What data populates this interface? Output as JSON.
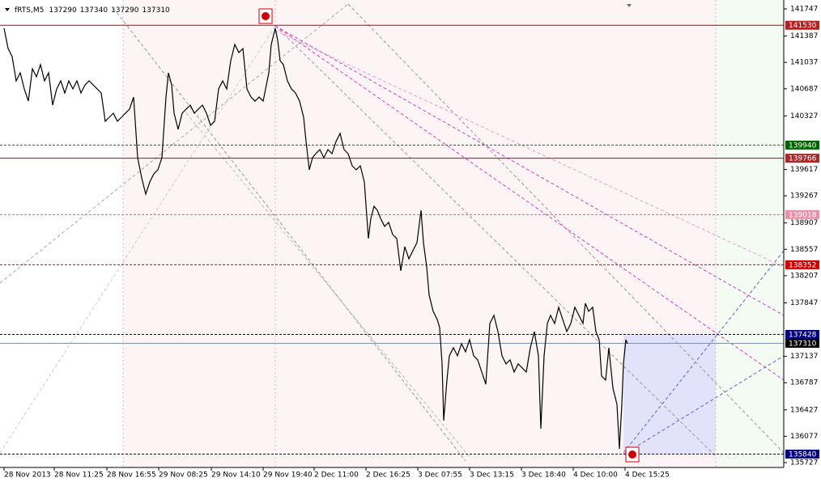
{
  "header": {
    "symbol": "fRTS,M5",
    "ohlc": [
      137290,
      137340,
      137290,
      137310
    ]
  },
  "chart_data": {
    "type": "line",
    "x": [
      5,
      10,
      15,
      20,
      25,
      30,
      35,
      40,
      45,
      50,
      55,
      60,
      65,
      70,
      75,
      80,
      85,
      90,
      95,
      100,
      105,
      110,
      120,
      125,
      130,
      135,
      140,
      145,
      150,
      155,
      160,
      165,
      170,
      175,
      180,
      185,
      190,
      195,
      200,
      205,
      208,
      212,
      215,
      220,
      225,
      230,
      235,
      240,
      245,
      250,
      255,
      260,
      265,
      270,
      275,
      280,
      285,
      290,
      295,
      300,
      305,
      310,
      315,
      320,
      325,
      328,
      332,
      335,
      340,
      343,
      346,
      350,
      355,
      360,
      365,
      370,
      375,
      378,
      382,
      386,
      390,
      395,
      400,
      405,
      410,
      415,
      420,
      425,
      430,
      435,
      440,
      445,
      450,
      455,
      458,
      462,
      466,
      470,
      475,
      480,
      485,
      490,
      495,
      500,
      505,
      510,
      515,
      520,
      523,
      527,
      530,
      535,
      540,
      543,
      546,
      548,
      552,
      555,
      560,
      565,
      570,
      575,
      580,
      585,
      590,
      595,
      600,
      605,
      610,
      615,
      620,
      625,
      630,
      635,
      640,
      645,
      650,
      655,
      660,
      665,
      668,
      672,
      676,
      680,
      685,
      690,
      695,
      700,
      705,
      710,
      715,
      720,
      723,
      727,
      732,
      736,
      740,
      743,
      748,
      752,
      757,
      762,
      765,
      768,
      770,
      773,
      775
    ],
    "series": [
      {
        "color": "#000000",
        "values": [
          141490,
          141221,
          141114,
          140792,
          140899,
          140685,
          140524,
          140953,
          140846,
          141007,
          140792,
          140899,
          140470,
          140685,
          140792,
          140631,
          140792,
          140685,
          140792,
          140631,
          140738,
          140792,
          140685,
          140631,
          140256,
          140309,
          140363,
          140256,
          140309,
          140363,
          140417,
          140577,
          139773,
          139504,
          139290,
          139451,
          139558,
          139612,
          139773,
          140577,
          140899,
          140738,
          140363,
          140148,
          140363,
          140417,
          140470,
          140363,
          140417,
          140470,
          140363,
          140202,
          140256,
          140685,
          140792,
          140685,
          141060,
          141275,
          141168,
          141221,
          140685,
          140577,
          140524,
          140577,
          140524,
          140685,
          140899,
          141275,
          141490,
          141329,
          141060,
          141007,
          140792,
          140685,
          140631,
          140524,
          140309,
          139987,
          139612,
          139773,
          139826,
          139880,
          139773,
          139880,
          139826,
          139987,
          140095,
          139880,
          139826,
          139665,
          139612,
          139665,
          139451,
          138700,
          138968,
          139129,
          139075,
          138968,
          138861,
          138914,
          138753,
          138700,
          138271,
          138592,
          138431,
          138539,
          138646,
          139075,
          138646,
          138324,
          137949,
          137734,
          137627,
          137519,
          137037,
          136285,
          136822,
          137144,
          137251,
          137144,
          137305,
          137197,
          137358,
          137144,
          137090,
          136929,
          136768,
          137573,
          137680,
          137466,
          137144,
          137037,
          137090,
          136929,
          137037,
          136983,
          136929,
          137251,
          137466,
          137144,
          136178,
          137144,
          137573,
          137680,
          137573,
          137788,
          137627,
          137466,
          137573,
          137788,
          137680,
          137573,
          137841,
          137734,
          137788,
          137466,
          137358,
          136876,
          136822,
          137251,
          136715,
          136500,
          135910,
          136500,
          137037,
          137358,
          137305
        ]
      }
    ],
    "xlim": [
      0,
      968
    ],
    "xticks": [
      {
        "value": 5,
        "label": "28 Nov 2013"
      },
      {
        "value": 67,
        "label": "28 Nov 11:25"
      },
      {
        "value": 132,
        "label": "28 Nov 16:55"
      },
      {
        "value": 196,
        "label": "29 Nov 08:25"
      },
      {
        "value": 261,
        "label": "29 Nov 14:10"
      },
      {
        "value": 325,
        "label": "29 Nov 19:40"
      },
      {
        "value": 388,
        "label": "2 Dec 11:00"
      },
      {
        "value": 452,
        "label": "2 Dec 16:25"
      },
      {
        "value": 516,
        "label": "3 Dec 07:55"
      },
      {
        "value": 580,
        "label": "3 Dec 13:15"
      },
      {
        "value": 644,
        "label": "3 Dec 18:40"
      },
      {
        "value": 708,
        "label": "4 Dec 10:00"
      },
      {
        "value": 772,
        "label": "4 Dec 15:25"
      }
    ],
    "ylim": [
      135663,
      141822
    ],
    "yticks": [
      141747,
      141387,
      141037,
      140687,
      140327,
      139617,
      139267,
      138907,
      138557,
      138207,
      137847,
      137137,
      136787,
      136427,
      136077,
      135727
    ],
    "levels": [
      {
        "value": 141530,
        "color": "#c00000",
        "style": "solid",
        "label_bg": "#b22222"
      },
      {
        "value": 139940,
        "color": "#008000",
        "style": "dashed",
        "label_bg": "#006400"
      },
      {
        "value": 139766,
        "color": "#c00000",
        "style": "solid",
        "label_bg": "#a52a2a"
      },
      {
        "value": 139018,
        "color": "#e06080",
        "style": "dashed",
        "label_bg": "#e891a8"
      },
      {
        "value": 138352,
        "color": "#d00000",
        "style": "dashed",
        "label_bg": "#d00000"
      },
      {
        "value": 137428,
        "color": "#000080",
        "style": "dashed",
        "label_bg": "#000080"
      },
      {
        "value": 137310,
        "color": "#8090b0",
        "style": "solid",
        "label_bg": "#000000"
      },
      {
        "value": 135840,
        "color": "#000080",
        "style": "dashed",
        "label_bg": "#000080"
      }
    ]
  }
}
